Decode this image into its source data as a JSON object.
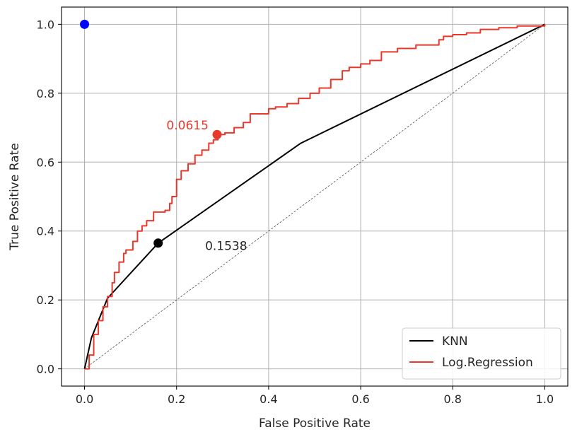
{
  "chart_data": {
    "type": "line",
    "xlabel": "False Positive Rate",
    "ylabel": "True Positive Rate",
    "xlim": [
      -0.05,
      1.05
    ],
    "ylim": [
      -0.05,
      1.05
    ],
    "xticks": [
      0.0,
      0.2,
      0.4,
      0.6,
      0.8,
      1.0
    ],
    "yticks": [
      0.0,
      0.2,
      0.4,
      0.6,
      0.8,
      1.0
    ],
    "xtick_labels": [
      "0.0",
      "0.2",
      "0.4",
      "0.6",
      "0.8",
      "1.0"
    ],
    "ytick_labels": [
      "0.0",
      "0.2",
      "0.4",
      "0.6",
      "0.8",
      "1.0"
    ],
    "grid": true,
    "legend_position": "bottom-right",
    "series": [
      {
        "name": "KNN",
        "color": "#000000",
        "x": [
          0.0,
          0.015,
          0.05,
          0.16,
          0.47,
          1.0
        ],
        "y": [
          0.0,
          0.09,
          0.205,
          0.365,
          0.655,
          1.0
        ]
      },
      {
        "name": "Log.Regression",
        "color": "#e8382b",
        "x": [
          0.0,
          0.01,
          0.02,
          0.03,
          0.04,
          0.05,
          0.06,
          0.065,
          0.075,
          0.085,
          0.09,
          0.105,
          0.115,
          0.125,
          0.135,
          0.15,
          0.175,
          0.185,
          0.19,
          0.2,
          0.21,
          0.225,
          0.24,
          0.255,
          0.27,
          0.28,
          0.29,
          0.305,
          0.325,
          0.345,
          0.36,
          0.4,
          0.415,
          0.44,
          0.465,
          0.49,
          0.51,
          0.535,
          0.56,
          0.575,
          0.6,
          0.62,
          0.645,
          0.68,
          0.72,
          0.77,
          0.78,
          0.8,
          0.83,
          0.86,
          0.9,
          0.94,
          1.0
        ],
        "y": [
          0.0,
          0.04,
          0.1,
          0.14,
          0.18,
          0.21,
          0.25,
          0.28,
          0.31,
          0.335,
          0.345,
          0.37,
          0.4,
          0.415,
          0.43,
          0.455,
          0.46,
          0.48,
          0.5,
          0.55,
          0.575,
          0.595,
          0.62,
          0.635,
          0.655,
          0.665,
          0.68,
          0.685,
          0.7,
          0.715,
          0.74,
          0.755,
          0.76,
          0.77,
          0.785,
          0.8,
          0.815,
          0.84,
          0.865,
          0.875,
          0.885,
          0.895,
          0.92,
          0.93,
          0.94,
          0.955,
          0.965,
          0.97,
          0.975,
          0.985,
          0.99,
          0.995,
          1.0
        ]
      },
      {
        "name": "",
        "color": "#555555",
        "dashed": true,
        "x": [
          0.0,
          1.0
        ],
        "y": [
          0.0,
          1.0
        ]
      }
    ],
    "points": [
      {
        "x": 0.0,
        "y": 1.0,
        "color": "#0000ff"
      },
      {
        "x": 0.16,
        "y": 0.365,
        "color": "#000000"
      },
      {
        "x": 0.288,
        "y": 0.68,
        "color": "#e8382b"
      }
    ],
    "annotations": [
      {
        "text": "0.0615",
        "x": 0.178,
        "y": 0.695,
        "color": "#e8382b"
      },
      {
        "text": "0.1538",
        "x": 0.262,
        "y": 0.345,
        "color": "#262626"
      }
    ]
  }
}
